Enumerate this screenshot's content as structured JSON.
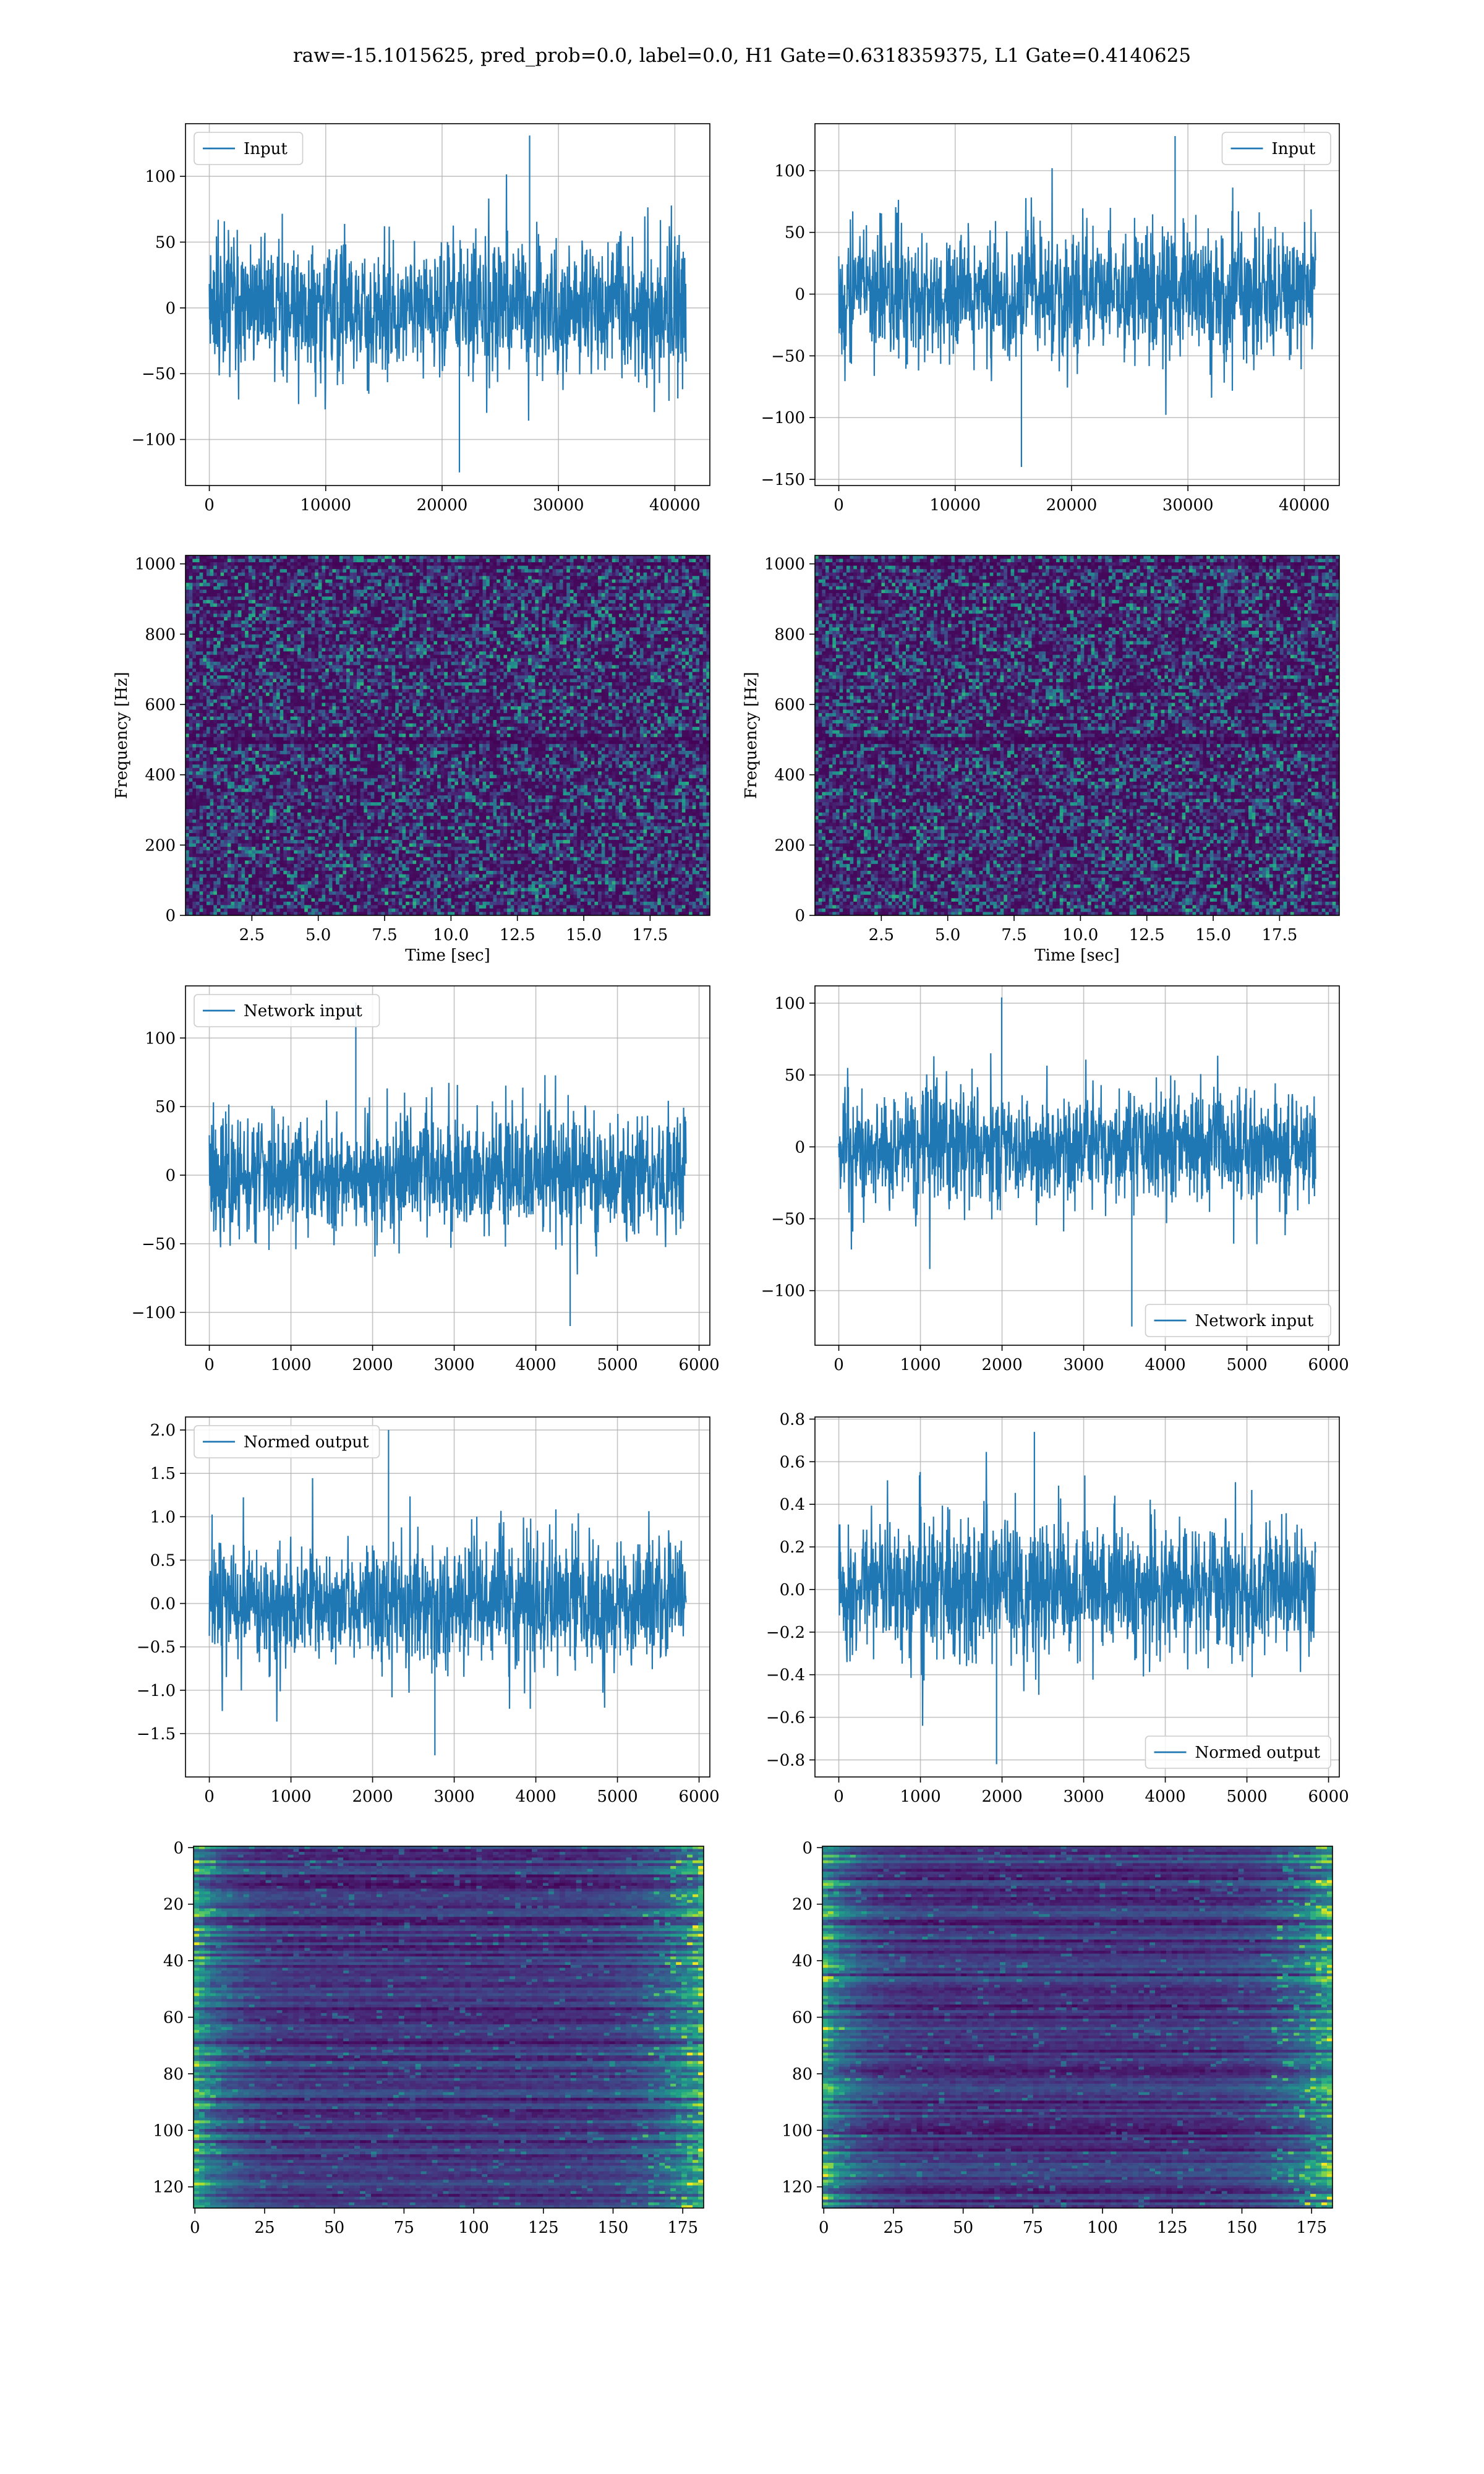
{
  "figure_title": "raw=-15.1015625, pred_prob=0.0, label=0.0, H1 Gate=0.6318359375, L1 Gate=0.4140625",
  "colors": {
    "line": "#1f77b4",
    "grid": "#b0b0b0",
    "axes": "#000000"
  },
  "chart_data": [
    {
      "id": "h1-input",
      "type": "line",
      "title": "",
      "xlabel": "",
      "ylabel": "",
      "xlim": [
        -2048,
        43008
      ],
      "ylim": [
        -135,
        140
      ],
      "xticks": [
        0,
        10000,
        20000,
        30000,
        40000
      ],
      "xtick_labels": [
        "0",
        "10000",
        "20000",
        "30000",
        "40000"
      ],
      "yticks": [
        -100,
        -50,
        0,
        50,
        100
      ],
      "ytick_labels": [
        "−100",
        "−50",
        "0",
        "50",
        "100"
      ],
      "series": [
        {
          "name": "Input",
          "x_start": 0,
          "x_end": 40960,
          "envelope": "stationary",
          "typical_amplitude": 60,
          "peak_max": 131,
          "peak_min": -125
        }
      ],
      "legend": {
        "location": "upper left",
        "entries": [
          "Input"
        ]
      }
    },
    {
      "id": "l1-input",
      "type": "line",
      "title": "",
      "xlabel": "",
      "ylabel": "",
      "xlim": [
        -2048,
        43008
      ],
      "ylim": [
        -155,
        138
      ],
      "xticks": [
        0,
        10000,
        20000,
        30000,
        40000
      ],
      "xtick_labels": [
        "0",
        "10000",
        "20000",
        "30000",
        "40000"
      ],
      "yticks": [
        -150,
        -100,
        -50,
        0,
        50,
        100
      ],
      "ytick_labels": [
        "−150",
        "−100",
        "−50",
        "0",
        "50",
        "100"
      ],
      "series": [
        {
          "name": "Input",
          "x_start": 0,
          "x_end": 40960,
          "envelope": "stationary",
          "typical_amplitude": 60,
          "peak_max": 128,
          "peak_min": -140
        }
      ],
      "legend": {
        "location": "upper right",
        "entries": [
          "Input"
        ]
      }
    },
    {
      "id": "h1-spectrogram",
      "type": "heatmap",
      "title": "",
      "xlabel": "Time [sec]",
      "ylabel": "Frequency [Hz]",
      "xlim": [
        0,
        19.75
      ],
      "ylim": [
        0,
        1024
      ],
      "xticks": [
        2.5,
        5.0,
        7.5,
        10.0,
        12.5,
        15.0,
        17.5
      ],
      "xtick_labels": [
        "2.5",
        "5.0",
        "7.5",
        "10.0",
        "12.5",
        "15.0",
        "17.5"
      ],
      "yticks": [
        0,
        200,
        400,
        600,
        800,
        1000
      ],
      "ytick_labels": [
        "0",
        "200",
        "400",
        "600",
        "800",
        "1000"
      ],
      "colormap": "viridis",
      "texture": "noise",
      "dark_bands_hz": [
        500,
        1000
      ]
    },
    {
      "id": "l1-spectrogram",
      "type": "heatmap",
      "title": "",
      "xlabel": "Time [sec]",
      "ylabel": "Frequency [Hz]",
      "xlim": [
        0,
        19.75
      ],
      "ylim": [
        0,
        1024
      ],
      "xticks": [
        2.5,
        5.0,
        7.5,
        10.0,
        12.5,
        15.0,
        17.5
      ],
      "xtick_labels": [
        "2.5",
        "5.0",
        "7.5",
        "10.0",
        "12.5",
        "15.0",
        "17.5"
      ],
      "yticks": [
        0,
        200,
        400,
        600,
        800,
        1000
      ],
      "ytick_labels": [
        "0",
        "200",
        "400",
        "600",
        "800",
        "1000"
      ],
      "colormap": "viridis",
      "texture": "noise",
      "dark_bands_hz": [
        500,
        1000
      ]
    },
    {
      "id": "h1-network-input",
      "type": "line",
      "title": "",
      "xlabel": "",
      "ylabel": "",
      "xlim": [
        -292,
        6132
      ],
      "ylim": [
        -124,
        138
      ],
      "xticks": [
        0,
        1000,
        2000,
        3000,
        4000,
        5000,
        6000
      ],
      "xtick_labels": [
        "0",
        "1000",
        "2000",
        "3000",
        "4000",
        "5000",
        "6000"
      ],
      "yticks": [
        -100,
        -50,
        0,
        50,
        100
      ],
      "ytick_labels": [
        "−100",
        "−50",
        "0",
        "50",
        "100"
      ],
      "series": [
        {
          "name": "Network input",
          "x_start": 0,
          "x_end": 5840,
          "envelope": "dip-then-rise",
          "typical_amplitude": 55,
          "peak_max": 126,
          "peak_min": -110
        }
      ],
      "legend": {
        "location": "upper left",
        "entries": [
          "Network input"
        ]
      }
    },
    {
      "id": "l1-network-input",
      "type": "line",
      "title": "",
      "xlabel": "",
      "ylabel": "",
      "xlim": [
        -292,
        6132
      ],
      "ylim": [
        -138,
        112
      ],
      "xticks": [
        0,
        1000,
        2000,
        3000,
        4000,
        5000,
        6000
      ],
      "xtick_labels": [
        "0",
        "1000",
        "2000",
        "3000",
        "4000",
        "5000",
        "6000"
      ],
      "yticks": [
        -100,
        -50,
        0,
        50,
        100
      ],
      "ytick_labels": [
        "−100",
        "−50",
        "0",
        "50",
        "100"
      ],
      "series": [
        {
          "name": "Network input",
          "x_start": 0,
          "x_end": 5840,
          "envelope": "rise-then-steady",
          "typical_amplitude": 50,
          "peak_max": 104,
          "peak_min": -125
        }
      ],
      "legend": {
        "location": "lower right",
        "entries": [
          "Network input"
        ]
      }
    },
    {
      "id": "h1-normed-output",
      "type": "line",
      "title": "",
      "xlabel": "",
      "ylabel": "",
      "xlim": [
        -292,
        6132
      ],
      "ylim": [
        -2.0,
        2.15
      ],
      "xticks": [
        0,
        1000,
        2000,
        3000,
        4000,
        5000,
        6000
      ],
      "xtick_labels": [
        "0",
        "1000",
        "2000",
        "3000",
        "4000",
        "5000",
        "6000"
      ],
      "yticks": [
        -1.5,
        -1.0,
        -0.5,
        0.0,
        0.5,
        1.0,
        1.5,
        2.0
      ],
      "ytick_labels": [
        "−1.5",
        "−1.0",
        "−0.5",
        "0.0",
        "0.5",
        "1.0",
        "1.5",
        "2.0"
      ],
      "series": [
        {
          "name": "Normed output",
          "x_start": 0,
          "x_end": 5840,
          "envelope": "dip-then-rise",
          "typical_amplitude": 0.85,
          "peak_max": 2.0,
          "peak_min": -1.75
        }
      ],
      "legend": {
        "location": "upper left",
        "entries": [
          "Normed output"
        ]
      }
    },
    {
      "id": "l1-normed-output",
      "type": "line",
      "title": "",
      "xlabel": "",
      "ylabel": "",
      "xlim": [
        -292,
        6132
      ],
      "ylim": [
        -0.88,
        0.81
      ],
      "xticks": [
        0,
        1000,
        2000,
        3000,
        4000,
        5000,
        6000
      ],
      "xtick_labels": [
        "0",
        "1000",
        "2000",
        "3000",
        "4000",
        "5000",
        "6000"
      ],
      "yticks": [
        -0.8,
        -0.6,
        -0.4,
        -0.2,
        0.0,
        0.2,
        0.4,
        0.6,
        0.8
      ],
      "ytick_labels": [
        "−0.8",
        "−0.6",
        "−0.4",
        "−0.2",
        "0.0",
        "0.2",
        "0.4",
        "0.6",
        "0.8"
      ],
      "series": [
        {
          "name": "Normed output",
          "x_start": 0,
          "x_end": 5840,
          "envelope": "rise-then-steady",
          "typical_amplitude": 0.38,
          "peak_max": 0.74,
          "peak_min": -0.82
        }
      ],
      "legend": {
        "location": "lower right",
        "entries": [
          "Normed output"
        ]
      }
    },
    {
      "id": "h1-feature-map",
      "type": "heatmap",
      "title": "",
      "xlabel": "",
      "ylabel": "",
      "xlim": [
        -0.5,
        182.5
      ],
      "ylim": [
        127.5,
        -0.5
      ],
      "xticks": [
        0,
        25,
        50,
        75,
        100,
        125,
        150,
        175
      ],
      "xtick_labels": [
        "0",
        "25",
        "50",
        "75",
        "100",
        "125",
        "150",
        "175"
      ],
      "yticks": [
        0,
        20,
        40,
        60,
        80,
        100,
        120
      ],
      "ytick_labels": [
        "0",
        "20",
        "40",
        "60",
        "80",
        "100",
        "120"
      ],
      "colormap": "viridis",
      "texture": "row-streaks",
      "bright_edges": true,
      "rows": 128,
      "cols": 183
    },
    {
      "id": "l1-feature-map",
      "type": "heatmap",
      "title": "",
      "xlabel": "",
      "ylabel": "",
      "xlim": [
        -0.5,
        182.5
      ],
      "ylim": [
        127.5,
        -0.5
      ],
      "xticks": [
        0,
        25,
        50,
        75,
        100,
        125,
        150,
        175
      ],
      "xtick_labels": [
        "0",
        "25",
        "50",
        "75",
        "100",
        "125",
        "150",
        "175"
      ],
      "yticks": [
        0,
        20,
        40,
        60,
        80,
        100,
        120
      ],
      "ytick_labels": [
        "0",
        "20",
        "40",
        "60",
        "80",
        "100",
        "120"
      ],
      "colormap": "viridis",
      "texture": "row-streaks",
      "bright_edges": true,
      "rows": 128,
      "cols": 183
    }
  ]
}
